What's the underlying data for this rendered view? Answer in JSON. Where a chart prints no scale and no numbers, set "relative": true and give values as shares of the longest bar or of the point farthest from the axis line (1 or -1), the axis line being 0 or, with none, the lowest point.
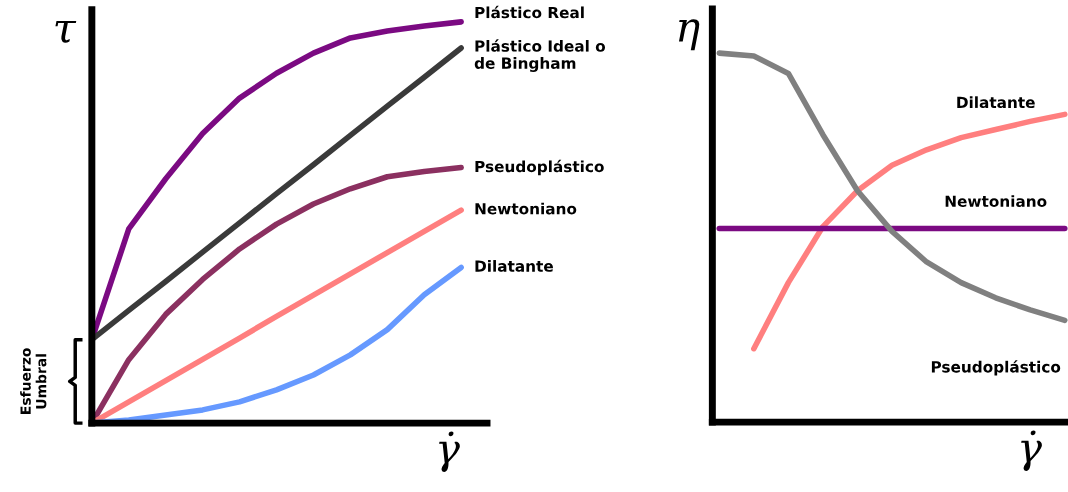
{
  "chart_data": [
    {
      "type": "line",
      "relative": true,
      "ylabel": "τ",
      "xlabel": "γ̇",
      "legend": false,
      "categories": [
        null,
        null,
        null,
        null,
        null,
        null,
        null,
        null,
        null,
        null,
        null
      ],
      "series": [
        {
          "name": "Plástico Real",
          "color": "#7b0a82",
          "values": [
            0.208,
            0.484,
            0.609,
            0.722,
            0.81,
            0.872,
            0.922,
            0.96,
            0.977,
            0.99,
            1.0
          ]
        },
        {
          "name": "Plástico Ideal o\nde Bingham",
          "color": "#3a3a3a",
          "values": [
            0.208,
            0.281,
            0.353,
            0.426,
            0.499,
            0.572,
            0.644,
            0.717,
            0.79,
            0.862,
            0.935
          ]
        },
        {
          "name": "Pseudoplástico",
          "color": "#8b3060",
          "values": [
            0,
            0.158,
            0.271,
            0.358,
            0.434,
            0.496,
            0.546,
            0.584,
            0.614,
            0.627,
            0.637
          ]
        },
        {
          "name": "Newtoniano",
          "color": "#ff7f7f",
          "values": [
            0,
            0.053,
            0.106,
            0.159,
            0.212,
            0.266,
            0.319,
            0.372,
            0.425,
            0.478,
            0.531
          ]
        },
        {
          "name": "Dilatante",
          "color": "#6699ff",
          "values": [
            0,
            0.008,
            0.02,
            0.033,
            0.053,
            0.083,
            0.12,
            0.17,
            0.233,
            0.32,
            0.388
          ]
        }
      ],
      "annotations": [
        "Esfuerzo\nUmbral"
      ]
    },
    {
      "type": "line",
      "relative": true,
      "ylabel": "η",
      "xlabel": "γ̇",
      "legend": false,
      "categories": [
        null,
        null,
        null,
        null,
        null,
        null,
        null,
        null,
        null,
        null,
        null
      ],
      "series": [
        {
          "name": "Dilatante",
          "color": "#ff7f7f",
          "values": [
            null,
            0.199,
            0.378,
            0.53,
            0.627,
            0.696,
            0.738,
            0.771,
            0.793,
            0.815,
            0.834
          ]
        },
        {
          "name": "Newtoniano",
          "color": "#7b0a82",
          "values": [
            0.525,
            0.525,
            0.525,
            0.525,
            0.525,
            0.525,
            0.525,
            0.525,
            0.525,
            0.525,
            0.525
          ]
        },
        {
          "name": "Pseudoplástico",
          "color": "#808080",
          "values": [
            1.0,
            0.992,
            0.945,
            0.779,
            0.627,
            0.517,
            0.434,
            0.378,
            0.337,
            0.304,
            0.276
          ]
        }
      ]
    }
  ]
}
